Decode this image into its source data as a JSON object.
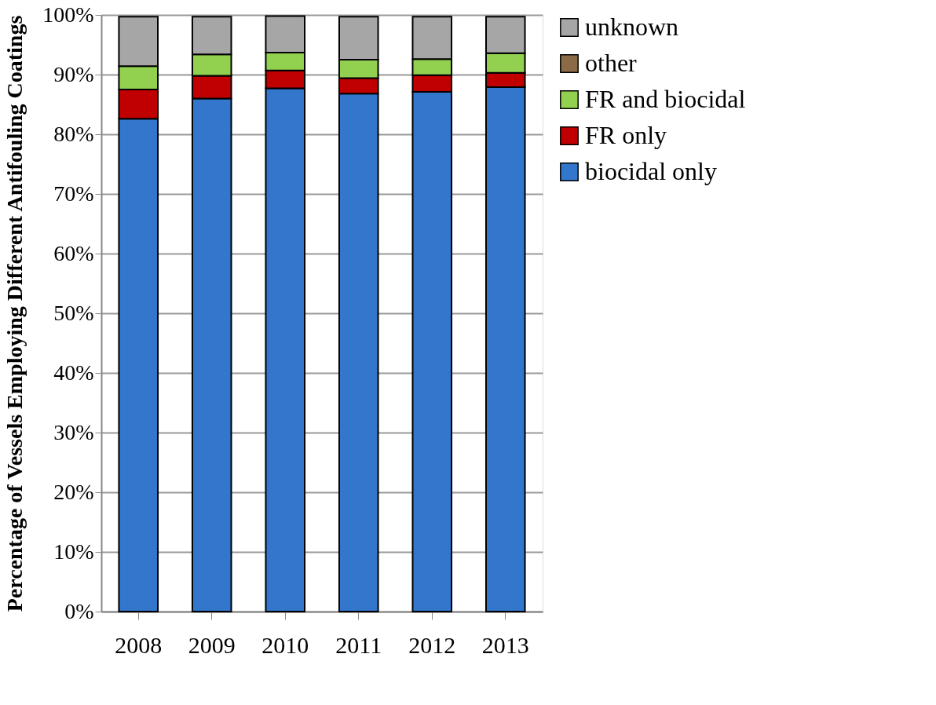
{
  "chart_data": {
    "type": "bar",
    "stacked": true,
    "ylabel": "Percentage of Vessels Employing Different Antifouling Coatings",
    "categories": [
      "2008",
      "2009",
      "2010",
      "2011",
      "2012",
      "2013"
    ],
    "series": [
      {
        "name": "biocidal only",
        "color": "#3277cc",
        "values": [
          82.6,
          86.0,
          87.7,
          86.8,
          87.1,
          87.9
        ]
      },
      {
        "name": "FR only",
        "color": "#c00000",
        "values": [
          4.9,
          3.8,
          3.0,
          2.6,
          2.8,
          2.4
        ]
      },
      {
        "name": "FR and biocidal",
        "color": "#92d050",
        "values": [
          3.9,
          3.6,
          3.0,
          3.1,
          2.7,
          3.3
        ]
      },
      {
        "name": "other",
        "color": "#8b6a46",
        "values": [
          null,
          null,
          null,
          null,
          null,
          null
        ]
      },
      {
        "name": "unknown",
        "color": "#a6a6a6",
        "values": [
          8.3,
          6.3,
          6.1,
          7.2,
          7.1,
          6.1
        ]
      }
    ],
    "ylim": [
      0,
      100
    ],
    "yticks": [
      {
        "value": 0,
        "label": "0%"
      },
      {
        "value": 10,
        "label": "10%"
      },
      {
        "value": 20,
        "label": "20%"
      },
      {
        "value": 30,
        "label": "30%"
      },
      {
        "value": 40,
        "label": "40%"
      },
      {
        "value": 50,
        "label": "50%"
      },
      {
        "value": 60,
        "label": "60%"
      },
      {
        "value": 70,
        "label": "70%"
      },
      {
        "value": 80,
        "label": "80%"
      },
      {
        "value": 90,
        "label": "90%"
      },
      {
        "value": 100,
        "label": "100%"
      }
    ],
    "grid": "y",
    "legend": "right"
  }
}
